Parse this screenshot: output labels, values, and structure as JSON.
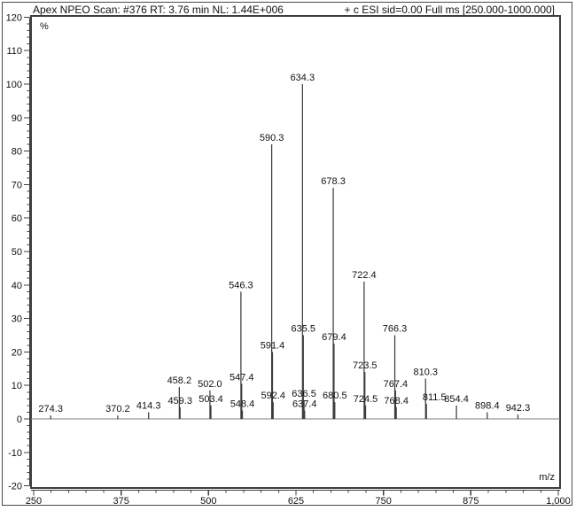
{
  "header": {
    "left": "Apex NPEO Scan: #376  RT: 3.76 min NL: 1.44E+006",
    "right": "+ c ESI sid=0.00  Full ms [250.000-1000.000]"
  },
  "colors": {
    "background": "#ffffff",
    "frame": "#4a4a4a",
    "axis": "#3f3f3f",
    "peak": "#3d3d3d",
    "baseline": "#7d7d7d",
    "text": "#111111"
  },
  "chart_data": {
    "type": "bar",
    "subtype": "mass-spectrum-stick-plot",
    "title": "Apex NPEO Scan: #376  RT: 3.76 min NL: 1.44E+006",
    "subtitle": "+ c ESI sid=0.00  Full ms [250.000-1000.000]",
    "xlabel": "m/z",
    "ylabel": "%",
    "xlim": [
      250,
      1000
    ],
    "ylim": [
      -20,
      120
    ],
    "grid": false,
    "legend": null,
    "x_major_ticks": [
      250,
      375,
      500,
      625,
      750,
      875,
      1000
    ],
    "x_major_tick_labels": [
      "250",
      "375",
      "500",
      "625",
      "750",
      "875",
      "1,000"
    ],
    "x_minor_step": 25,
    "y_major_step": 10,
    "y_minor_step": 2,
    "peaks": [
      {
        "mz": 274.3,
        "intensity": 1.0,
        "label": "274.3"
      },
      {
        "mz": 370.2,
        "intensity": 1.0,
        "label": "370.2"
      },
      {
        "mz": 414.3,
        "intensity": 2.0,
        "label": "414.3"
      },
      {
        "mz": 458.2,
        "intensity": 9.5,
        "label": "458.2"
      },
      {
        "mz": 459.3,
        "intensity": 3.5,
        "label": "459.3"
      },
      {
        "mz": 502.0,
        "intensity": 8.5,
        "label": "502.0"
      },
      {
        "mz": 503.4,
        "intensity": 4.0,
        "label": "503.4"
      },
      {
        "mz": 546.3,
        "intensity": 38.0,
        "label": "546.3"
      },
      {
        "mz": 547.4,
        "intensity": 10.5,
        "label": "547.4"
      },
      {
        "mz": 548.4,
        "intensity": 2.5,
        "label": "548.4"
      },
      {
        "mz": 590.3,
        "intensity": 82.0,
        "label": "590.3"
      },
      {
        "mz": 591.4,
        "intensity": 20.0,
        "label": "591.4"
      },
      {
        "mz": 592.4,
        "intensity": 5.0,
        "label": "592.4"
      },
      {
        "mz": 634.3,
        "intensity": 100.0,
        "label": "634.3"
      },
      {
        "mz": 635.5,
        "intensity": 25.0,
        "label": "635.5"
      },
      {
        "mz": 636.5,
        "intensity": 5.5,
        "label": "636.5"
      },
      {
        "mz": 637.4,
        "intensity": 2.5,
        "label": "637.4"
      },
      {
        "mz": 678.3,
        "intensity": 69.0,
        "label": "678.3"
      },
      {
        "mz": 679.4,
        "intensity": 22.5,
        "label": "679.4"
      },
      {
        "mz": 680.5,
        "intensity": 5.0,
        "label": "680.5"
      },
      {
        "mz": 722.4,
        "intensity": 41.0,
        "label": "722.4"
      },
      {
        "mz": 723.5,
        "intensity": 14.0,
        "label": "723.5"
      },
      {
        "mz": 724.5,
        "intensity": 4.0,
        "label": "724.5"
      },
      {
        "mz": 766.3,
        "intensity": 25.0,
        "label": "766.3"
      },
      {
        "mz": 767.4,
        "intensity": 8.5,
        "label": "767.4"
      },
      {
        "mz": 768.4,
        "intensity": 3.5,
        "label": "768.4"
      },
      {
        "mz": 810.3,
        "intensity": 12.0,
        "label": "810.3"
      },
      {
        "mz": 811.5,
        "intensity": 4.5,
        "label": "811.5",
        "label_dx": 9
      },
      {
        "mz": 854.4,
        "intensity": 4.0,
        "label": "854.4"
      },
      {
        "mz": 898.4,
        "intensity": 2.0,
        "label": "898.4"
      },
      {
        "mz": 942.3,
        "intensity": 1.3,
        "label": "942.3"
      }
    ]
  }
}
